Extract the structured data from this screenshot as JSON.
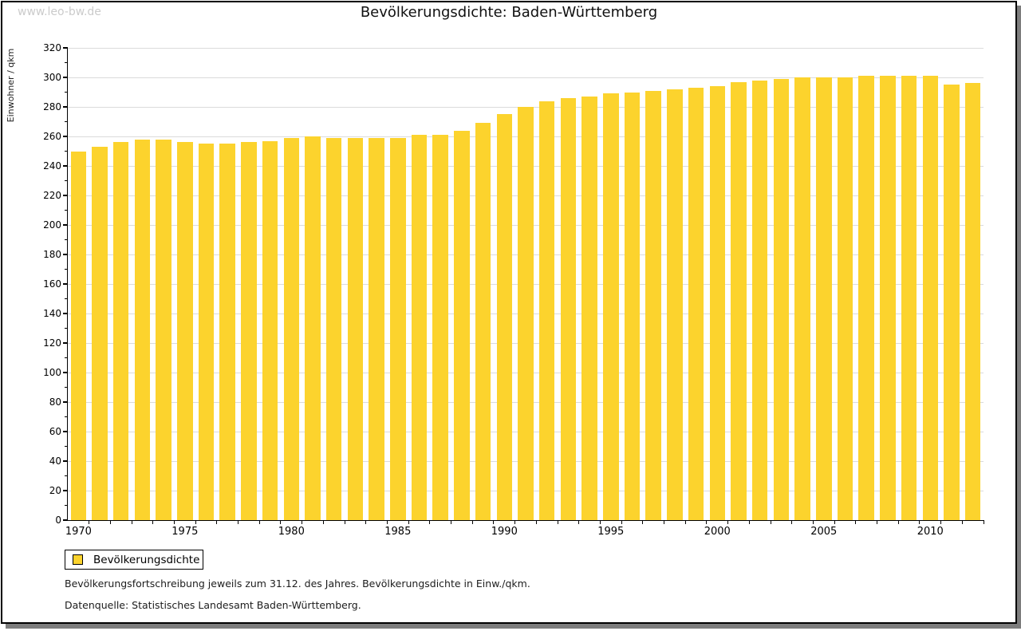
{
  "watermark": "www.leo-bw.de",
  "title": "Bevölkerungsdichte: Baden-Württemberg",
  "legend": {
    "label": "Bevölkerungsdichte"
  },
  "footnotes": {
    "line1": "Bevölkerungsfortschreibung jeweils zum 31.12. des Jahres. Bevölkerungsdichte in Einw./qkm.",
    "line2": "Datenquelle: Statistisches Landesamt Baden-Württemberg."
  },
  "colors": {
    "bar": "#fcd32d",
    "grid": "#dbdbdb",
    "axis": "#000000",
    "watermark": "#cbcbcb",
    "shadow": "#7d7d7d"
  },
  "chart_data": {
    "type": "bar",
    "title": "Bevölkerungsdichte: Baden-Württemberg",
    "xlabel": "",
    "ylabel": "Einwohner / qkm",
    "ylim": [
      0,
      320
    ],
    "ytick_step": 20,
    "yminor_step": 10,
    "grid": true,
    "legend_position": "bottom-left",
    "categories": [
      1970,
      1971,
      1972,
      1973,
      1974,
      1975,
      1976,
      1977,
      1978,
      1979,
      1980,
      1981,
      1982,
      1983,
      1984,
      1985,
      1986,
      1987,
      1988,
      1989,
      1990,
      1991,
      1992,
      1993,
      1994,
      1995,
      1996,
      1997,
      1998,
      1999,
      2000,
      2001,
      2002,
      2003,
      2004,
      2005,
      2006,
      2007,
      2008,
      2009,
      2010,
      2011,
      2012
    ],
    "xtick_labels": [
      "1970",
      "1975",
      "1980",
      "1985",
      "1990",
      "1995",
      "2000",
      "2005",
      "2010"
    ],
    "series": [
      {
        "name": "Bevölkerungsdichte",
        "values": [
          250,
          253,
          256,
          258,
          258,
          256,
          255,
          255,
          256,
          257,
          259,
          260,
          259,
          259,
          259,
          259,
          261,
          261,
          264,
          269,
          275,
          280,
          284,
          286,
          287,
          289,
          290,
          291,
          292,
          293,
          294,
          297,
          298,
          299,
          300,
          300,
          300,
          301,
          301,
          301,
          301,
          295,
          296
        ]
      }
    ]
  }
}
